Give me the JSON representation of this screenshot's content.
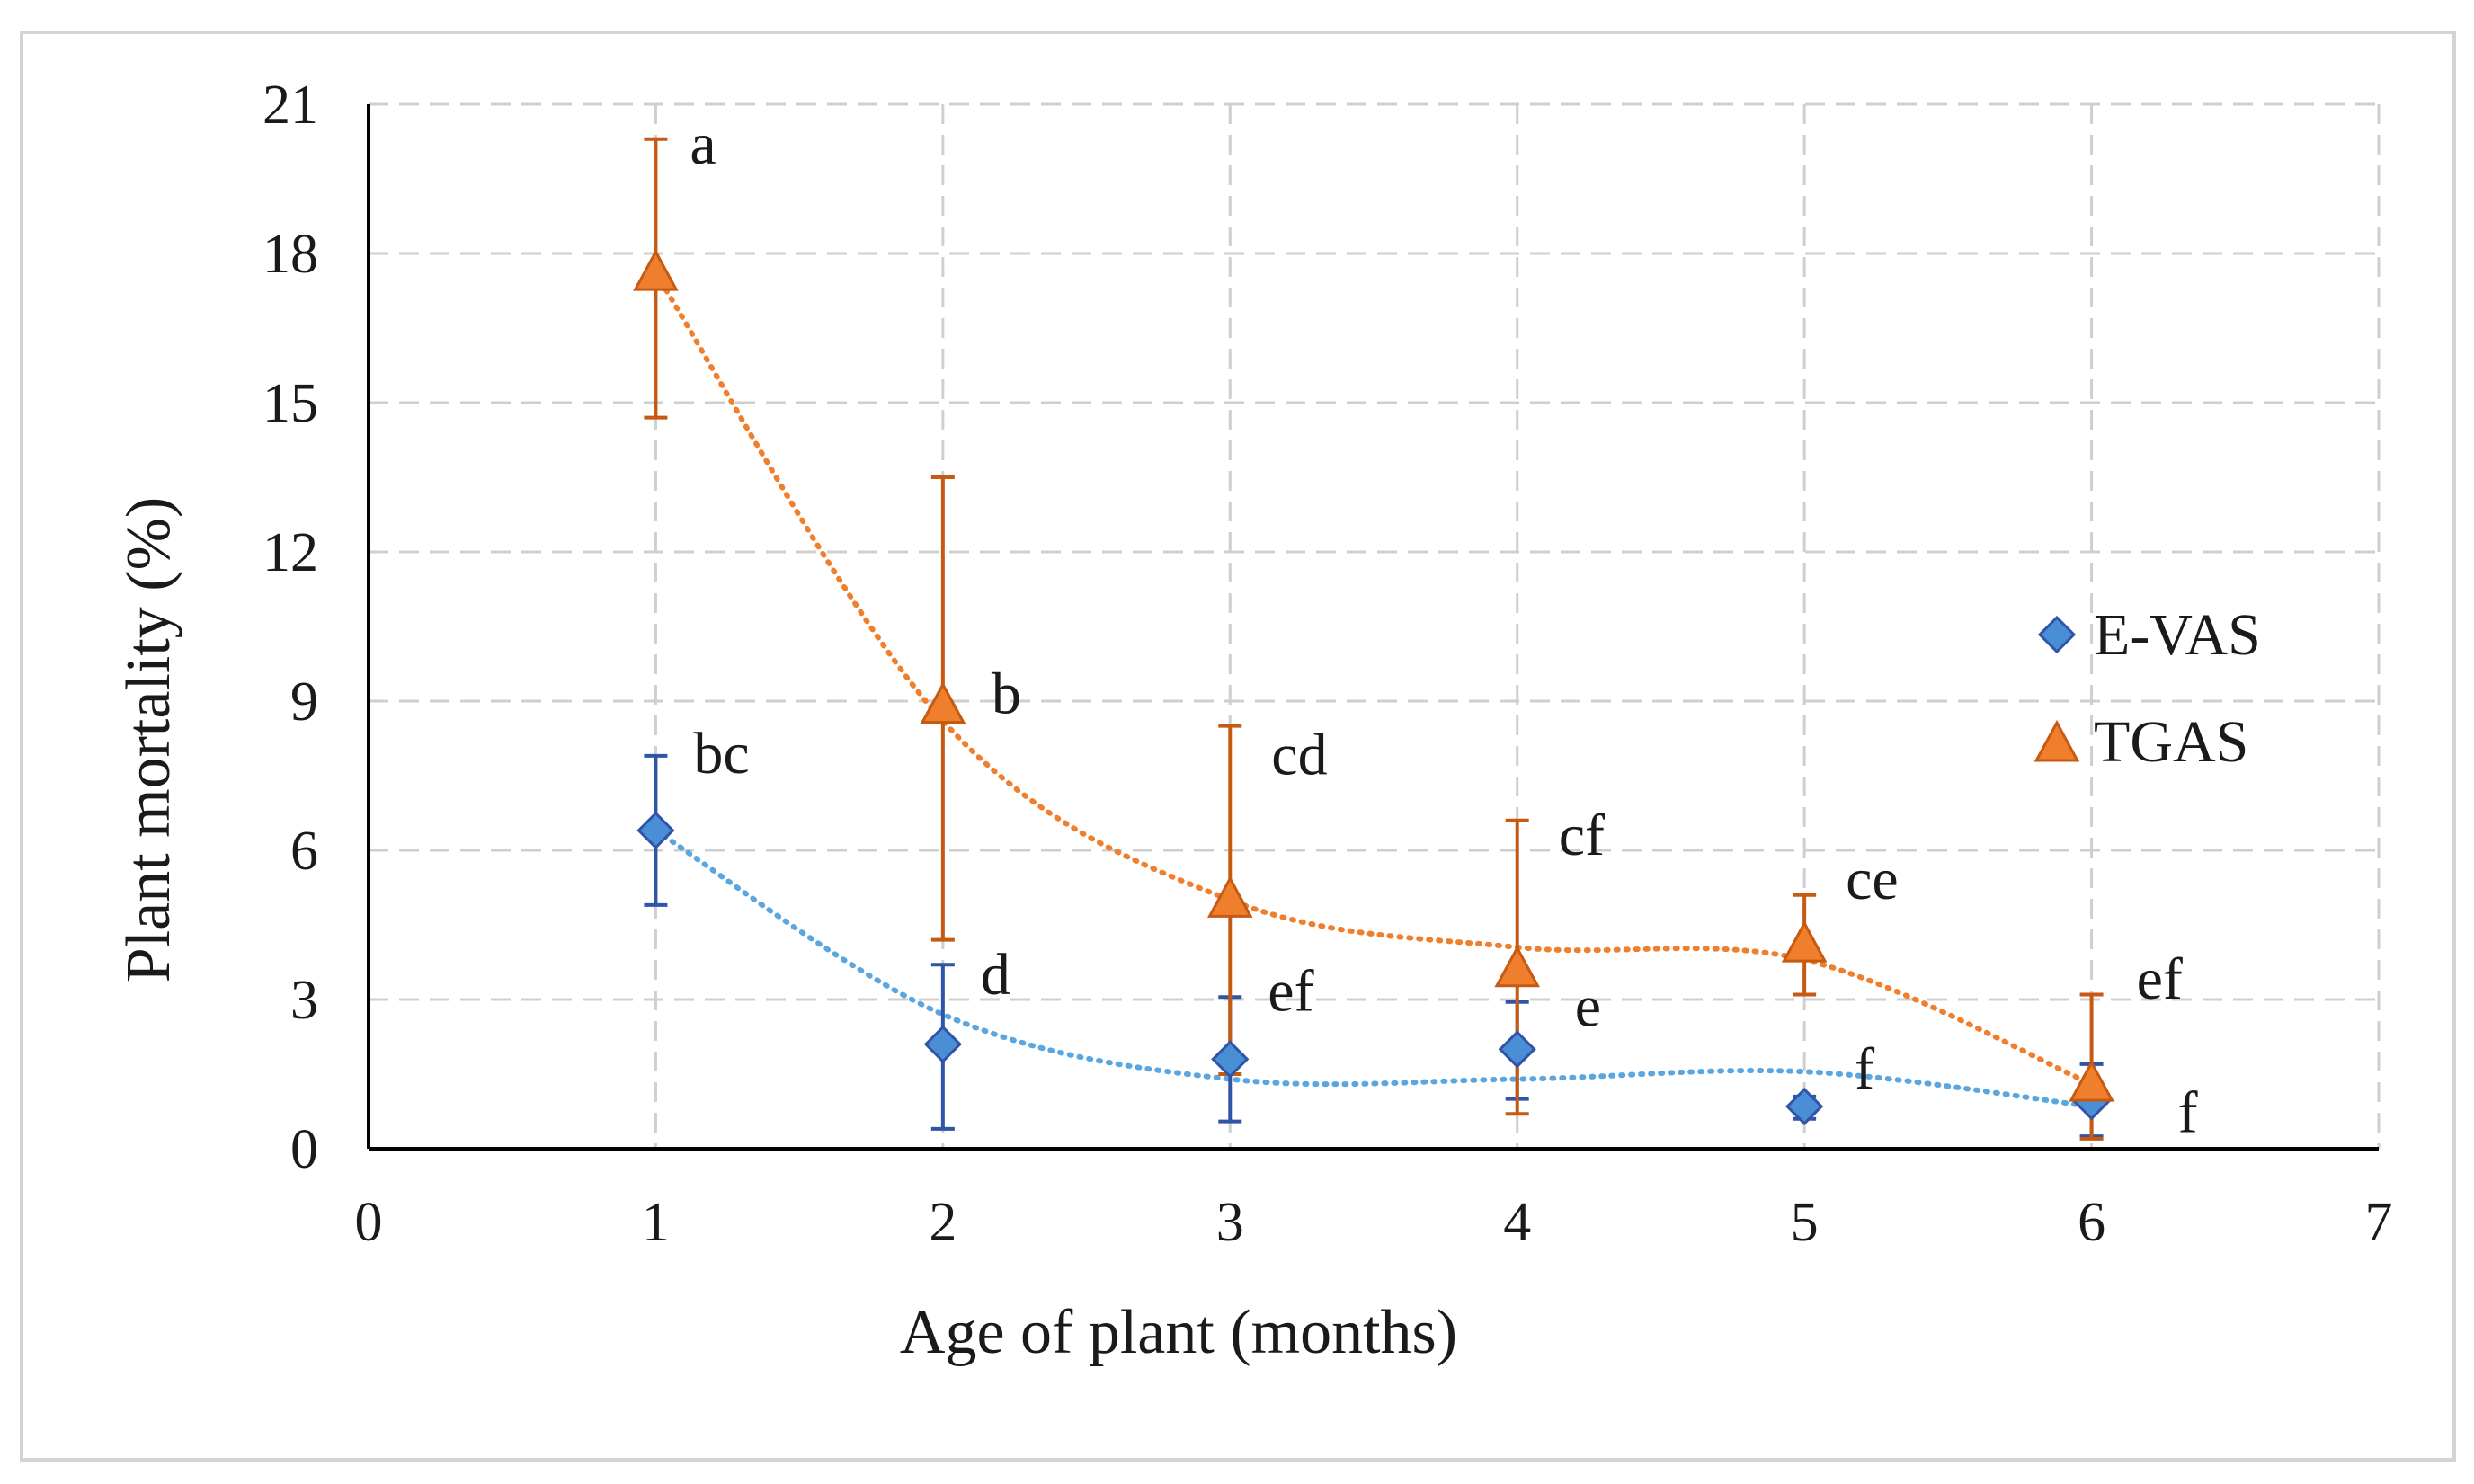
{
  "chart_data": {
    "type": "scatter",
    "title": "",
    "xlabel": "Age of plant (months)",
    "ylabel": "Plant mortality (%)",
    "xlim": [
      0,
      7
    ],
    "ylim": [
      0,
      21
    ],
    "xticks": [
      0,
      1,
      2,
      3,
      4,
      5,
      6,
      7
    ],
    "yticks": [
      0,
      3,
      6,
      9,
      12,
      15,
      18,
      21
    ],
    "grid": true,
    "legend_position": "right",
    "colors": {
      "E-VAS": "#4a8fd6",
      "E-VAS-error": "#2f54a8",
      "E-VAS-trend": "#5aa6e0",
      "TGAS": "#ef7f2d",
      "TGAS-error": "#c65a12",
      "TGAS-trend": "#ef7f2d",
      "grid": "#cfcfcf",
      "axis": "#000000"
    },
    "series": [
      {
        "name": "E-VAS",
        "marker": "diamond",
        "x": [
          1,
          2,
          3,
          4,
          5,
          6
        ],
        "y": [
          6.4,
          2.1,
          1.8,
          2.0,
          0.85,
          0.95
        ],
        "err_low": [
          4.9,
          0.4,
          0.55,
          1.0,
          0.6,
          0.25
        ],
        "err_high": [
          7.9,
          3.7,
          3.05,
          2.95,
          1.05,
          1.7
        ],
        "labels": [
          "bc",
          "d",
          "ef",
          "e",
          "f",
          "f"
        ],
        "trend": [
          [
            1,
            6.4
          ],
          [
            2,
            2.7
          ],
          [
            3,
            1.4
          ],
          [
            4,
            1.4
          ],
          [
            5,
            1.55
          ],
          [
            6,
            0.85
          ]
        ]
      },
      {
        "name": "TGAS",
        "marker": "triangle",
        "x": [
          1,
          2,
          3,
          4,
          5,
          6
        ],
        "y": [
          17.6,
          8.9,
          5.0,
          3.6,
          4.1,
          1.3
        ],
        "err_low": [
          14.7,
          4.2,
          1.5,
          0.7,
          3.1,
          0.2
        ],
        "err_high": [
          20.3,
          13.5,
          8.5,
          6.6,
          5.1,
          3.1
        ],
        "labels": [
          "a",
          "b",
          "cd",
          "cf",
          "ce",
          "ef"
        ],
        "trend": [
          [
            1,
            17.6
          ],
          [
            2,
            8.6
          ],
          [
            3,
            5.0
          ],
          [
            4,
            4.05
          ],
          [
            5,
            3.8
          ],
          [
            6,
            1.3
          ]
        ]
      }
    ]
  }
}
